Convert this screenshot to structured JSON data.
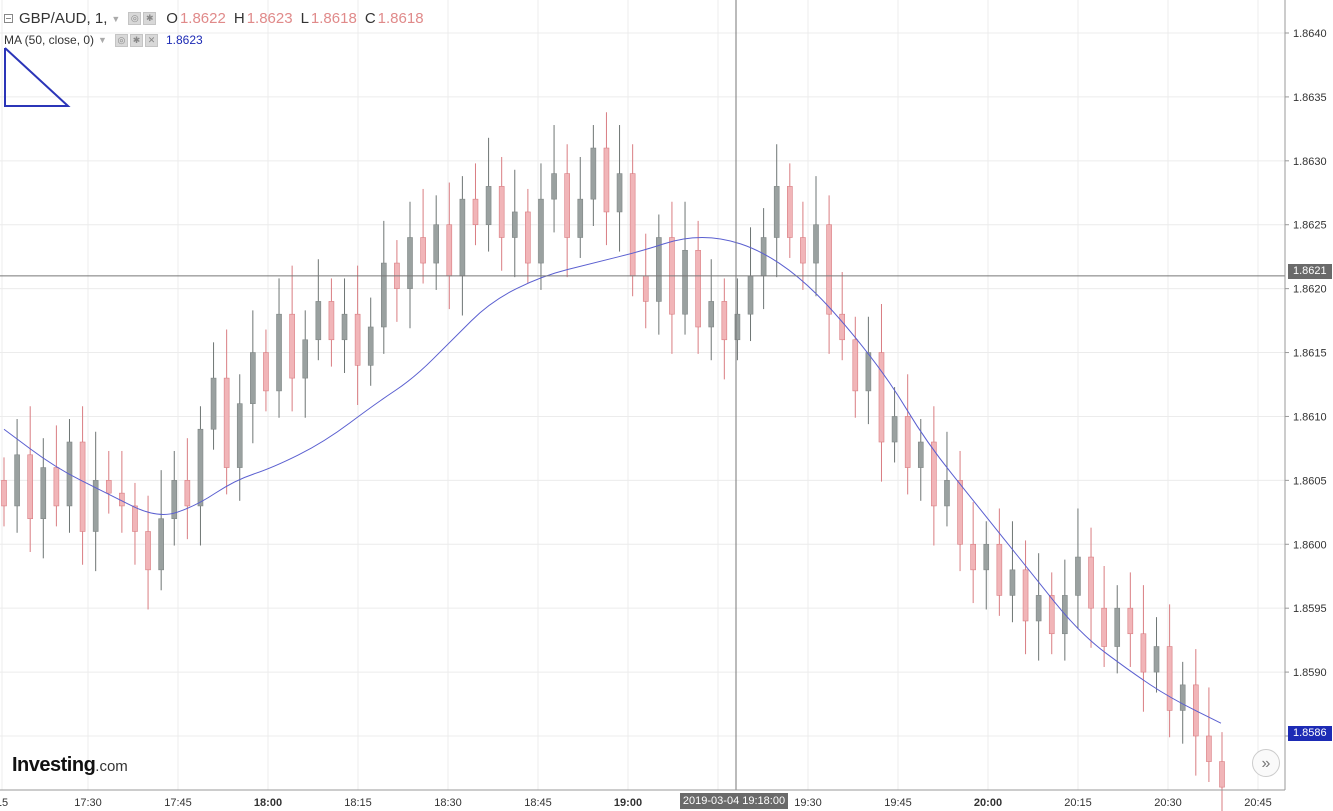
{
  "legend": {
    "symbol": "GBP/AUD, 1,",
    "open_key": "O",
    "open_val": "1.8622",
    "high_key": "H",
    "high_val": "1.8623",
    "low_key": "L",
    "low_val": "1.8618",
    "close_key": "C",
    "close_val": "1.8618",
    "ma_label": "MA (50, close, 0)",
    "ma_value": "1.8623"
  },
  "crosshair": {
    "price_label": "1.8621",
    "time_label": "2019-03-04 19:18:00",
    "price": 1.8621
  },
  "ma_tag": {
    "label": "1.8586",
    "price": 1.8586
  },
  "logo": {
    "main": "Investing",
    "suffix": ".com"
  },
  "icons": {
    "scroll": "double-chevron-right-icon",
    "drawing": "triangle-drawing-icon",
    "settings": "gear-icon",
    "close": "close-icon"
  },
  "colors": {
    "up": "#9aa1a0",
    "down": "#f1b5b8",
    "down_border": "#d97d82",
    "ma": "#5a5fd0",
    "grid": "#ececec"
  },
  "chart_data": {
    "type": "candlestick",
    "title": "GBP/AUD, 1,",
    "ylim": [
      1.858,
      1.8641
    ],
    "yticks": [
      "1.8640",
      "1.8635",
      "1.8630",
      "1.8625",
      "1.8620",
      "1.8615",
      "1.8610",
      "1.8605",
      "1.8600",
      "1.8595",
      "1.8590",
      "1.8585"
    ],
    "xticks": [
      {
        "label": "15",
        "bold": false
      },
      {
        "label": "17:30",
        "bold": false
      },
      {
        "label": "17:45",
        "bold": false
      },
      {
        "label": "18:00",
        "bold": true
      },
      {
        "label": "18:15",
        "bold": false
      },
      {
        "label": "18:30",
        "bold": false
      },
      {
        "label": "18:45",
        "bold": false
      },
      {
        "label": "19:00",
        "bold": true
      },
      {
        "label": "19:15",
        "bold": false
      },
      {
        "label": "19:30",
        "bold": false
      },
      {
        "label": "19:45",
        "bold": false
      },
      {
        "label": "20:00",
        "bold": true
      },
      {
        "label": "20:15",
        "bold": false
      },
      {
        "label": "20:30",
        "bold": false
      },
      {
        "label": "20:45",
        "bold": false
      }
    ],
    "price_path": [
      1.8603,
      1.8607,
      1.8602,
      1.8606,
      1.8603,
      1.8608,
      1.8601,
      1.8605,
      1.8604,
      1.8603,
      1.8601,
      1.8598,
      1.8602,
      1.8605,
      1.8603,
      1.8609,
      1.8613,
      1.8606,
      1.8611,
      1.8615,
      1.8612,
      1.8618,
      1.8613,
      1.8616,
      1.8619,
      1.8616,
      1.8618,
      1.8614,
      1.8617,
      1.8622,
      1.862,
      1.8624,
      1.8622,
      1.8625,
      1.8621,
      1.8627,
      1.8625,
      1.8628,
      1.8624,
      1.8626,
      1.8622,
      1.8627,
      1.8629,
      1.8624,
      1.8627,
      1.8631,
      1.8626,
      1.8629,
      1.8621,
      1.8619,
      1.8624,
      1.8618,
      1.8623,
      1.8617,
      1.8619,
      1.8616,
      1.8618,
      1.8621,
      1.8624,
      1.8628,
      1.8624,
      1.8622,
      1.8625,
      1.8618,
      1.8616,
      1.8612,
      1.8615,
      1.8608,
      1.861,
      1.8606,
      1.8608,
      1.8603,
      1.8605,
      1.86,
      1.8598,
      1.86,
      1.8596,
      1.8598,
      1.8594,
      1.8596,
      1.8593,
      1.8596,
      1.8599,
      1.8595,
      1.8592,
      1.8595,
      1.8593,
      1.859,
      1.8592,
      1.8587,
      1.8589,
      1.8585,
      1.8583,
      1.8581
    ],
    "ma_path": [
      [
        1.8609,
        0.0
      ],
      [
        1.8606,
        0.04
      ],
      [
        1.8604,
        0.08
      ],
      [
        1.8602,
        0.12
      ],
      [
        1.8603,
        0.15
      ],
      [
        1.8605,
        0.18
      ],
      [
        1.8606,
        0.21
      ],
      [
        1.8608,
        0.25
      ],
      [
        1.8611,
        0.29
      ],
      [
        1.8613,
        0.32
      ],
      [
        1.8616,
        0.35
      ],
      [
        1.8619,
        0.38
      ],
      [
        1.8621,
        0.42
      ],
      [
        1.8622,
        0.46
      ],
      [
        1.8623,
        0.5
      ],
      [
        1.8624,
        0.53
      ],
      [
        1.8624,
        0.56
      ],
      [
        1.8623,
        0.59
      ],
      [
        1.8621,
        0.62
      ],
      [
        1.8618,
        0.65
      ],
      [
        1.8613,
        0.69
      ],
      [
        1.8608,
        0.72
      ],
      [
        1.8603,
        0.76
      ],
      [
        1.8598,
        0.8
      ],
      [
        1.8593,
        0.84
      ],
      [
        1.859,
        0.88
      ],
      [
        1.8588,
        0.91
      ],
      [
        1.8586,
        0.95
      ]
    ]
  }
}
